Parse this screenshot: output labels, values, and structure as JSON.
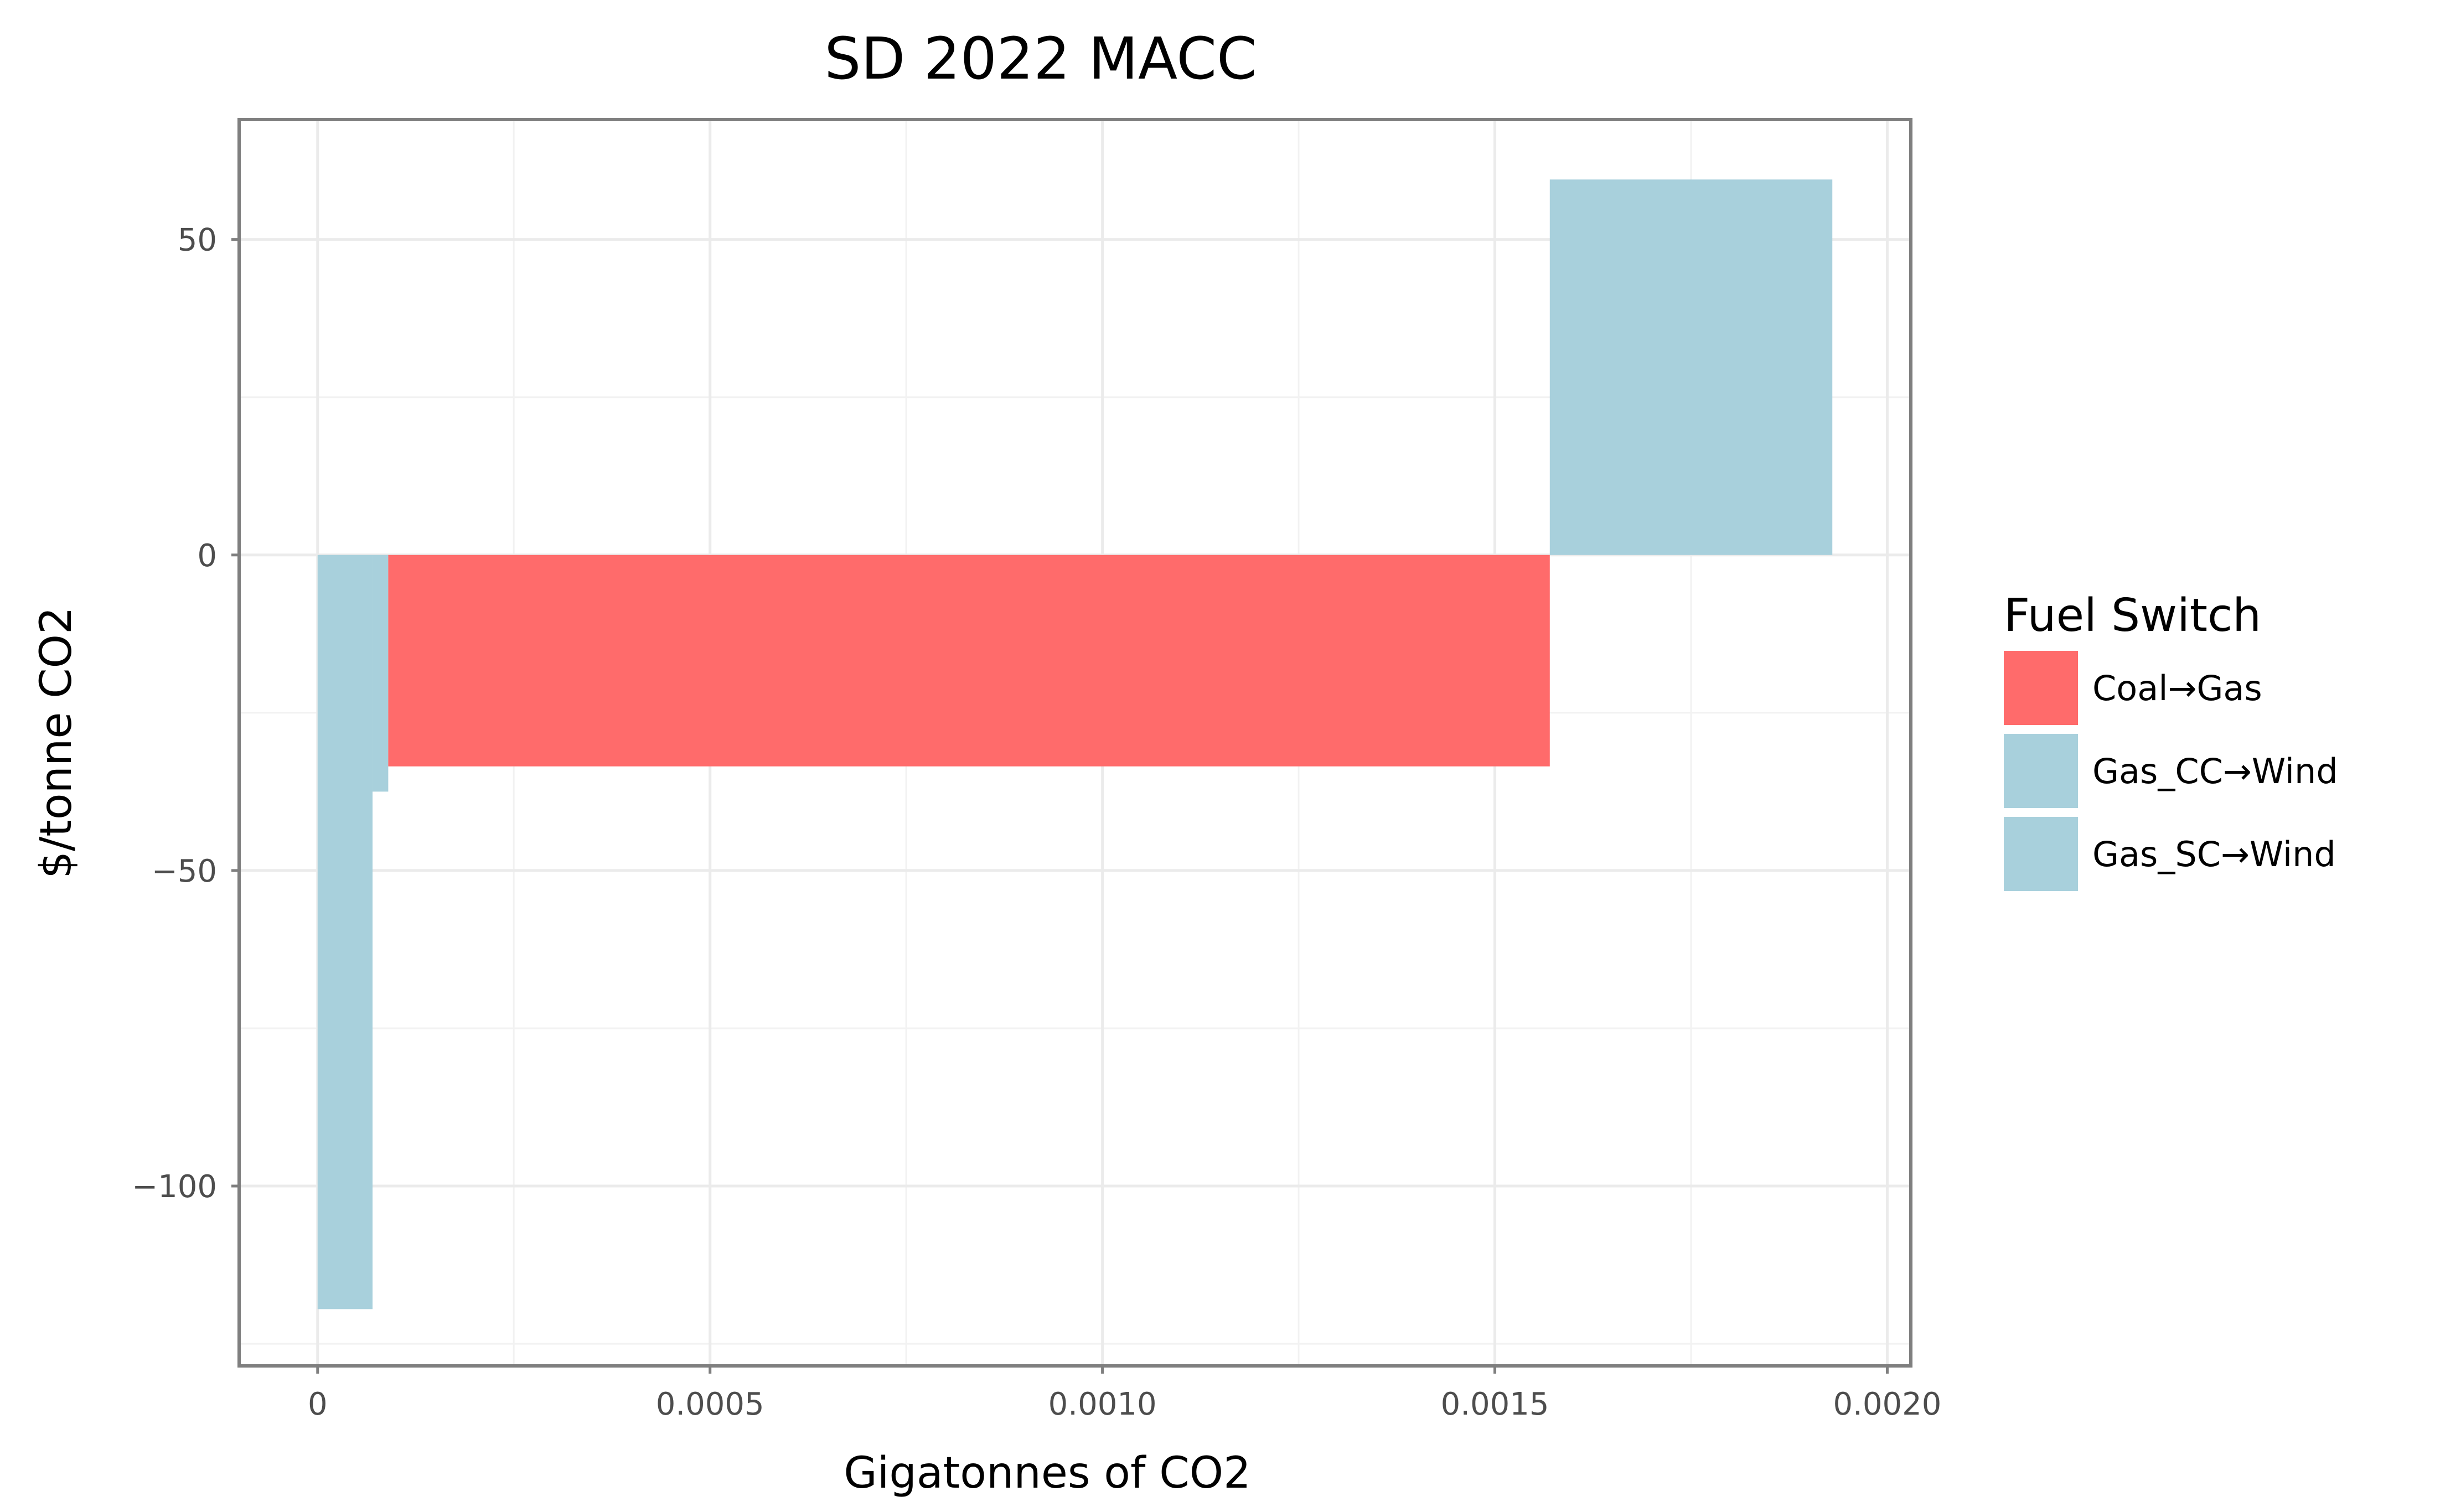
{
  "chart_data": {
    "type": "bar",
    "chart_kind": "marginal abatement cost curve (variable-width bars)",
    "title": "SD 2022 MACC",
    "xlabel": "Gigatonnes of CO2",
    "ylabel": "$/tonne CO2",
    "xlim": [
      -0.0001,
      0.00203
    ],
    "ylim": [
      -128.5,
      69
    ],
    "x_ticks": [
      0,
      0.0005,
      0.001,
      0.0015,
      0.002
    ],
    "x_tick_labels": [
      "0",
      "0.0005",
      "0.0010",
      "0.0015",
      "0.0020"
    ],
    "y_ticks": [
      -100,
      -50,
      0,
      50
    ],
    "y_tick_labels": [
      "−100",
      "−50",
      "0",
      "50"
    ],
    "grid": true,
    "legend": {
      "title": "Fuel Switch",
      "position": "right",
      "entries": [
        {
          "label": "Coal→Gas",
          "color": "#FF6B6B"
        },
        {
          "label": "Gas_CC→Wind",
          "color": "#A8D0DC"
        },
        {
          "label": "Gas_SC→Wind",
          "color": "#A8D0DC"
        }
      ]
    },
    "bars": [
      {
        "series": "Gas_SC→Wind",
        "x_start": 0.0,
        "x_end": 7e-05,
        "value": -119.5,
        "color": "#A8D0DC"
      },
      {
        "series": "Gas_CC→Wind",
        "x_start": 7e-05,
        "x_end": 9e-05,
        "value": -37.5,
        "color": "#A8D0DC"
      },
      {
        "series": "Coal→Gas",
        "x_start": 9e-05,
        "x_end": 0.00157,
        "value": -33.5,
        "color": "#FF6B6B"
      },
      {
        "series": "Gas_CC→Wind",
        "x_start": 0.00157,
        "x_end": 0.00193,
        "value": 59.5,
        "color": "#A8D0DC"
      }
    ]
  }
}
